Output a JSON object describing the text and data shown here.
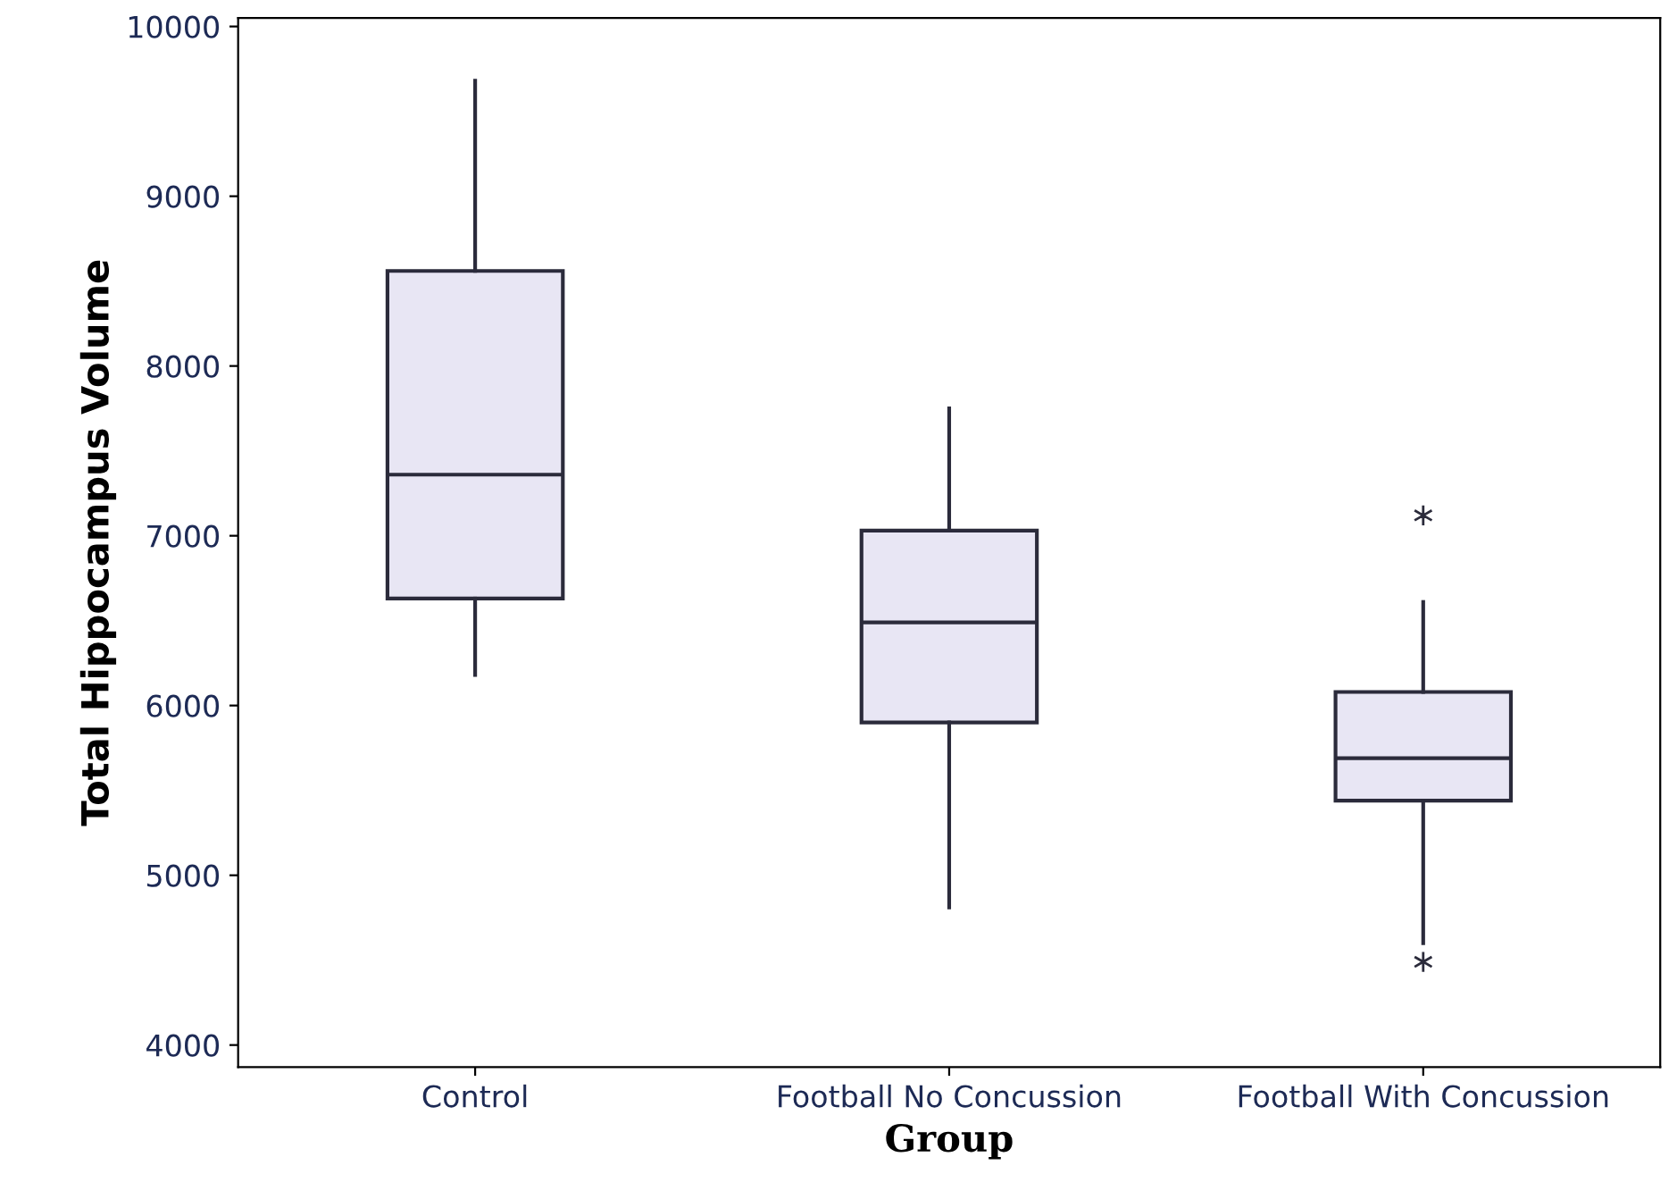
{
  "chart_data": {
    "type": "box",
    "xlabel": "Group",
    "ylabel": "Total Hippocampus Volume",
    "categories": [
      "Control",
      "Football No Concussion",
      "Football With Concussion"
    ],
    "boxes": [
      {
        "low": 6180,
        "q1": 6630,
        "median": 7360,
        "q3": 8560,
        "high": 9680
      },
      {
        "low": 4810,
        "q1": 5900,
        "median": 6490,
        "q3": 7030,
        "high": 7750
      },
      {
        "low": 4600,
        "q1": 5440,
        "median": 5690,
        "q3": 6080,
        "high": 6610,
        "outliers": [
          7120,
          4490
        ]
      }
    ],
    "color": "#e8e6f4",
    "ylim": [
      3870,
      10050
    ],
    "yticks": [
      4000,
      5000,
      6000,
      7000,
      8000,
      9000,
      10000
    ],
    "grid": false,
    "marker": "star"
  }
}
